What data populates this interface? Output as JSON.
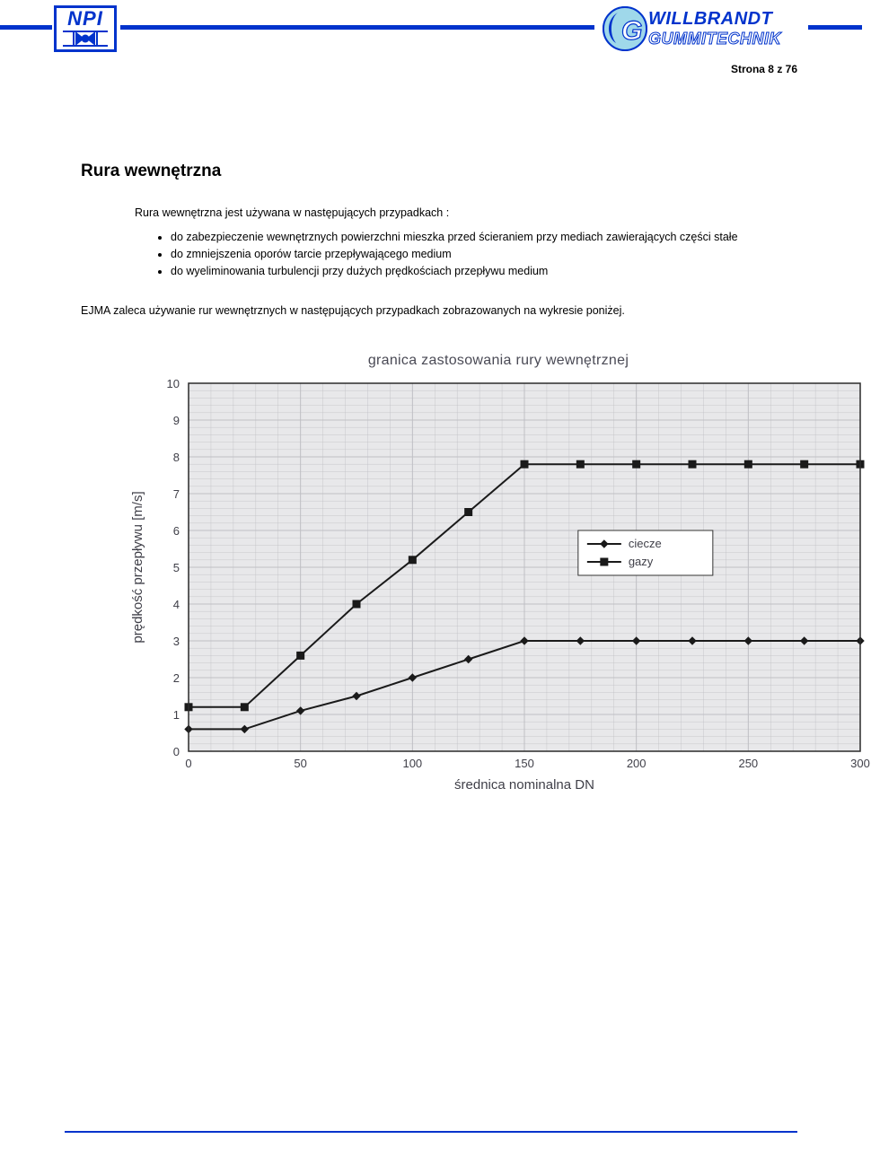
{
  "header": {
    "left_logo_text": "NPI",
    "right_brand_line1": "WILLBRANDT",
    "right_brand_line2": "GUMMITECHNIK",
    "page_number_label": "Strona 8 z 76",
    "line_color": "#0033cc"
  },
  "body": {
    "title": "Rura wewnętrzna",
    "intro": "Rura wewnętrzna jest używana w następujących przypadkach :",
    "bullets": [
      "do zabezpieczenie wewnętrznych powierzchni mieszka przed ścieraniem przy mediach zawierających części stałe",
      "do zmniejszenia oporów tarcie przepływającego medium",
      "do wyeliminowania turbulencji przy dużych prędkościach przepływu medium"
    ],
    "ejma_text": "EJMA zaleca używanie rur wewnętrznych w następujących przypadkach zobrazowanych na wykresie poniżej."
  },
  "chart": {
    "type": "line",
    "title": "granica zastosowania rury wewnętrznej",
    "xlabel": "średnica nominalna DN",
    "ylabel": "prędkość przepływu [m/s]",
    "xlim": [
      0,
      300
    ],
    "ylim": [
      0,
      10
    ],
    "xtick_step": 50,
    "ytick_step": 1,
    "xticks": [
      0,
      50,
      100,
      150,
      200,
      250,
      300
    ],
    "yticks": [
      0,
      1,
      2,
      3,
      4,
      5,
      6,
      7,
      8,
      9,
      10
    ],
    "plot_background": "#e8e8ea",
    "grid_color": "#bfbfc4",
    "axis_color": "#2a2a2a",
    "label_color": "#3f3f48",
    "label_fontsize": 15,
    "tick_fontsize": 13,
    "line_color": "#1a1a1a",
    "line_width": 2,
    "marker_size": 8,
    "series": [
      {
        "name": "ciecze",
        "marker": "diamond",
        "x": [
          0,
          25,
          50,
          75,
          100,
          125,
          150,
          175,
          200,
          225,
          250,
          275,
          300
        ],
        "y": [
          0.6,
          0.6,
          1.1,
          1.5,
          2.0,
          2.5,
          3.0,
          3.0,
          3.0,
          3.0,
          3.0,
          3.0,
          3.0
        ]
      },
      {
        "name": "gazy",
        "marker": "square",
        "x": [
          0,
          25,
          50,
          75,
          100,
          125,
          150,
          175,
          200,
          225,
          250,
          275,
          300
        ],
        "y": [
          1.2,
          1.2,
          2.6,
          4.0,
          5.2,
          6.5,
          7.8,
          7.8,
          7.8,
          7.8,
          7.8,
          7.8,
          7.8
        ]
      }
    ],
    "legend": {
      "items": [
        "ciecze",
        "gazy"
      ],
      "background": "#ffffff",
      "border_color": "#333333",
      "position": "center-right-inside"
    }
  }
}
